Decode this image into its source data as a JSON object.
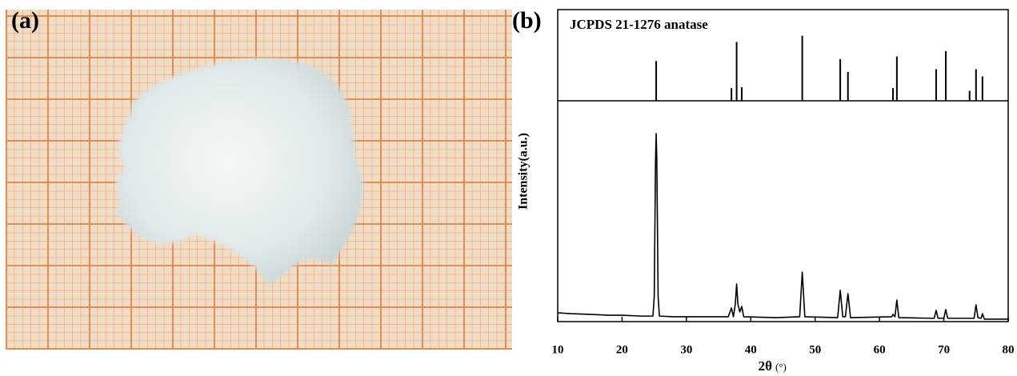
{
  "panel_labels": [
    "(a)",
    "(b)"
  ],
  "chart_data": [
    {
      "type": "stem",
      "title": "JCPDS 21-1276 anatase",
      "x": [
        25.3,
        37.0,
        37.8,
        38.6,
        48.0,
        53.9,
        55.1,
        62.1,
        62.7,
        68.8,
        70.3,
        74.0,
        75.0,
        76.0
      ],
      "values": [
        44,
        14,
        65,
        15,
        72,
        46,
        32,
        14,
        49,
        35,
        55,
        11,
        35,
        27
      ],
      "color": "#000000",
      "xlim": [
        10,
        80
      ],
      "ylim": [
        0,
        100
      ]
    },
    {
      "type": "line",
      "ylabel": "Intensity(a.u.)",
      "xlabel": "2θ",
      "xlabel_unit": "(°)",
      "x": [
        10,
        12,
        15,
        18,
        20,
        23,
        24.8,
        25.0,
        25.2,
        25.3,
        25.4,
        25.6,
        25.8,
        28,
        32,
        36.5,
        37.0,
        37.3,
        37.6,
        37.8,
        38.0,
        38.3,
        38.6,
        38.9,
        44,
        47.6,
        48.0,
        48.4,
        53.5,
        53.9,
        54.3,
        54.7,
        55.1,
        55.5,
        61.9,
        62.1,
        62.4,
        62.7,
        63.0,
        68.5,
        68.8,
        69.1,
        70.0,
        70.3,
        70.6,
        74.7,
        75.0,
        75.3,
        75.8,
        76.0,
        76.3,
        80
      ],
      "values": [
        4.0,
        3.6,
        3.3,
        2.9,
        2.9,
        2.5,
        2.5,
        11.6,
        73.5,
        85.5,
        73.5,
        11.6,
        2.5,
        2.2,
        2.2,
        2.2,
        6.2,
        2.2,
        8,
        17.1,
        8,
        4.4,
        6.9,
        2.2,
        1.8,
        2.2,
        22.5,
        2.2,
        1.8,
        14.2,
        2.2,
        2.2,
        12.7,
        1.8,
        2.2,
        3.3,
        2.2,
        9.8,
        1.8,
        1.5,
        5.1,
        1.5,
        1.5,
        5.5,
        1.5,
        1.5,
        7.6,
        1.8,
        1.5,
        3.6,
        1.1,
        1.1
      ],
      "color": "#000000",
      "xlim": [
        10,
        80
      ],
      "ylim": [
        0,
        100
      ],
      "xticks": [
        10,
        20,
        30,
        40,
        50,
        60,
        70,
        80
      ]
    }
  ]
}
